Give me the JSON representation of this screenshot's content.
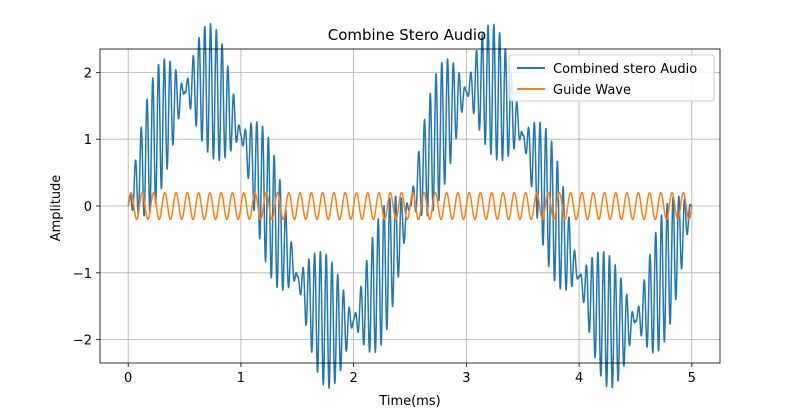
{
  "chart_data": {
    "type": "line",
    "title": "Combine Stero Audio",
    "xlabel": "Time(ms)",
    "ylabel": "Amplitude",
    "xlim": [
      -0.25,
      5.25
    ],
    "ylim": [
      -2.35,
      2.35
    ],
    "xticks": [
      0,
      1,
      2,
      3,
      4,
      5
    ],
    "xtick_labels": [
      "0",
      "1",
      "2",
      "3",
      "4",
      "5"
    ],
    "yticks": [
      -2,
      -1,
      0,
      1,
      2
    ],
    "ytick_labels": [
      "−2",
      "−1",
      "0",
      "1",
      "2"
    ],
    "grid": true,
    "legend_position": "top-right",
    "series": [
      {
        "name": "Combined stero Audio",
        "color": "#1f77b4",
        "x_range": [
          0,
          5
        ],
        "components": [
          {
            "amplitude": 1.8,
            "frequency_per_ms": 0.4
          },
          {
            "amplitude": 1.0,
            "frequency_per_ms": 1.0,
            "carrier_frequency_per_ms": 19.5
          }
        ]
      },
      {
        "name": "Guide Wave",
        "color": "#ff7f0e",
        "x_range": [
          0,
          5
        ],
        "amplitude": 0.2,
        "frequency_per_ms": 10.0
      }
    ]
  }
}
